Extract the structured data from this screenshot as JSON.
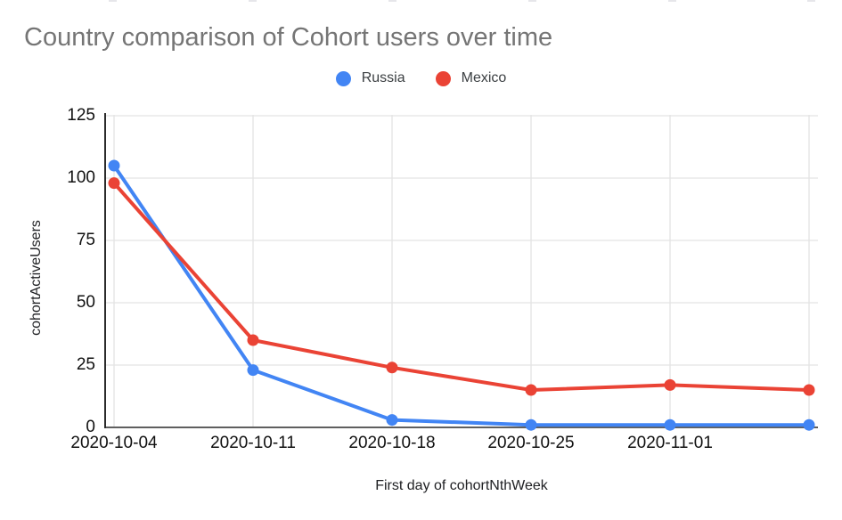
{
  "chart_data": {
    "type": "line",
    "title": "Country comparison of Cohort users over time",
    "xlabel": "First day of cohortNthWeek",
    "ylabel": "cohortActiveUsers",
    "categories": [
      "2020-10-04",
      "2020-10-11",
      "2020-10-18",
      "2020-10-25",
      "2020-11-01",
      ""
    ],
    "x_tick_labels": [
      "2020-10-04",
      "2020-10-11",
      "2020-10-18",
      "2020-10-25",
      "2020-11-01"
    ],
    "y_ticks": [
      0,
      25,
      50,
      75,
      100,
      125
    ],
    "ylim": [
      0,
      125
    ],
    "grid": true,
    "legend_position": "top-center",
    "series": [
      {
        "name": "Russia",
        "color": "#4285f4",
        "values": [
          105,
          23,
          3,
          1,
          1,
          1
        ]
      },
      {
        "name": "Mexico",
        "color": "#ea4335",
        "values": [
          98,
          35,
          24,
          15,
          17,
          15
        ]
      }
    ]
  },
  "colors": {
    "title_text": "#757575",
    "tick_text": "#111111",
    "axis_title_text": "#202124",
    "gridline": "#e3e3e3",
    "x_axis_line": "#5f5f5f",
    "y_axis_line": "#2b2b2b",
    "background": "#ffffff"
  }
}
